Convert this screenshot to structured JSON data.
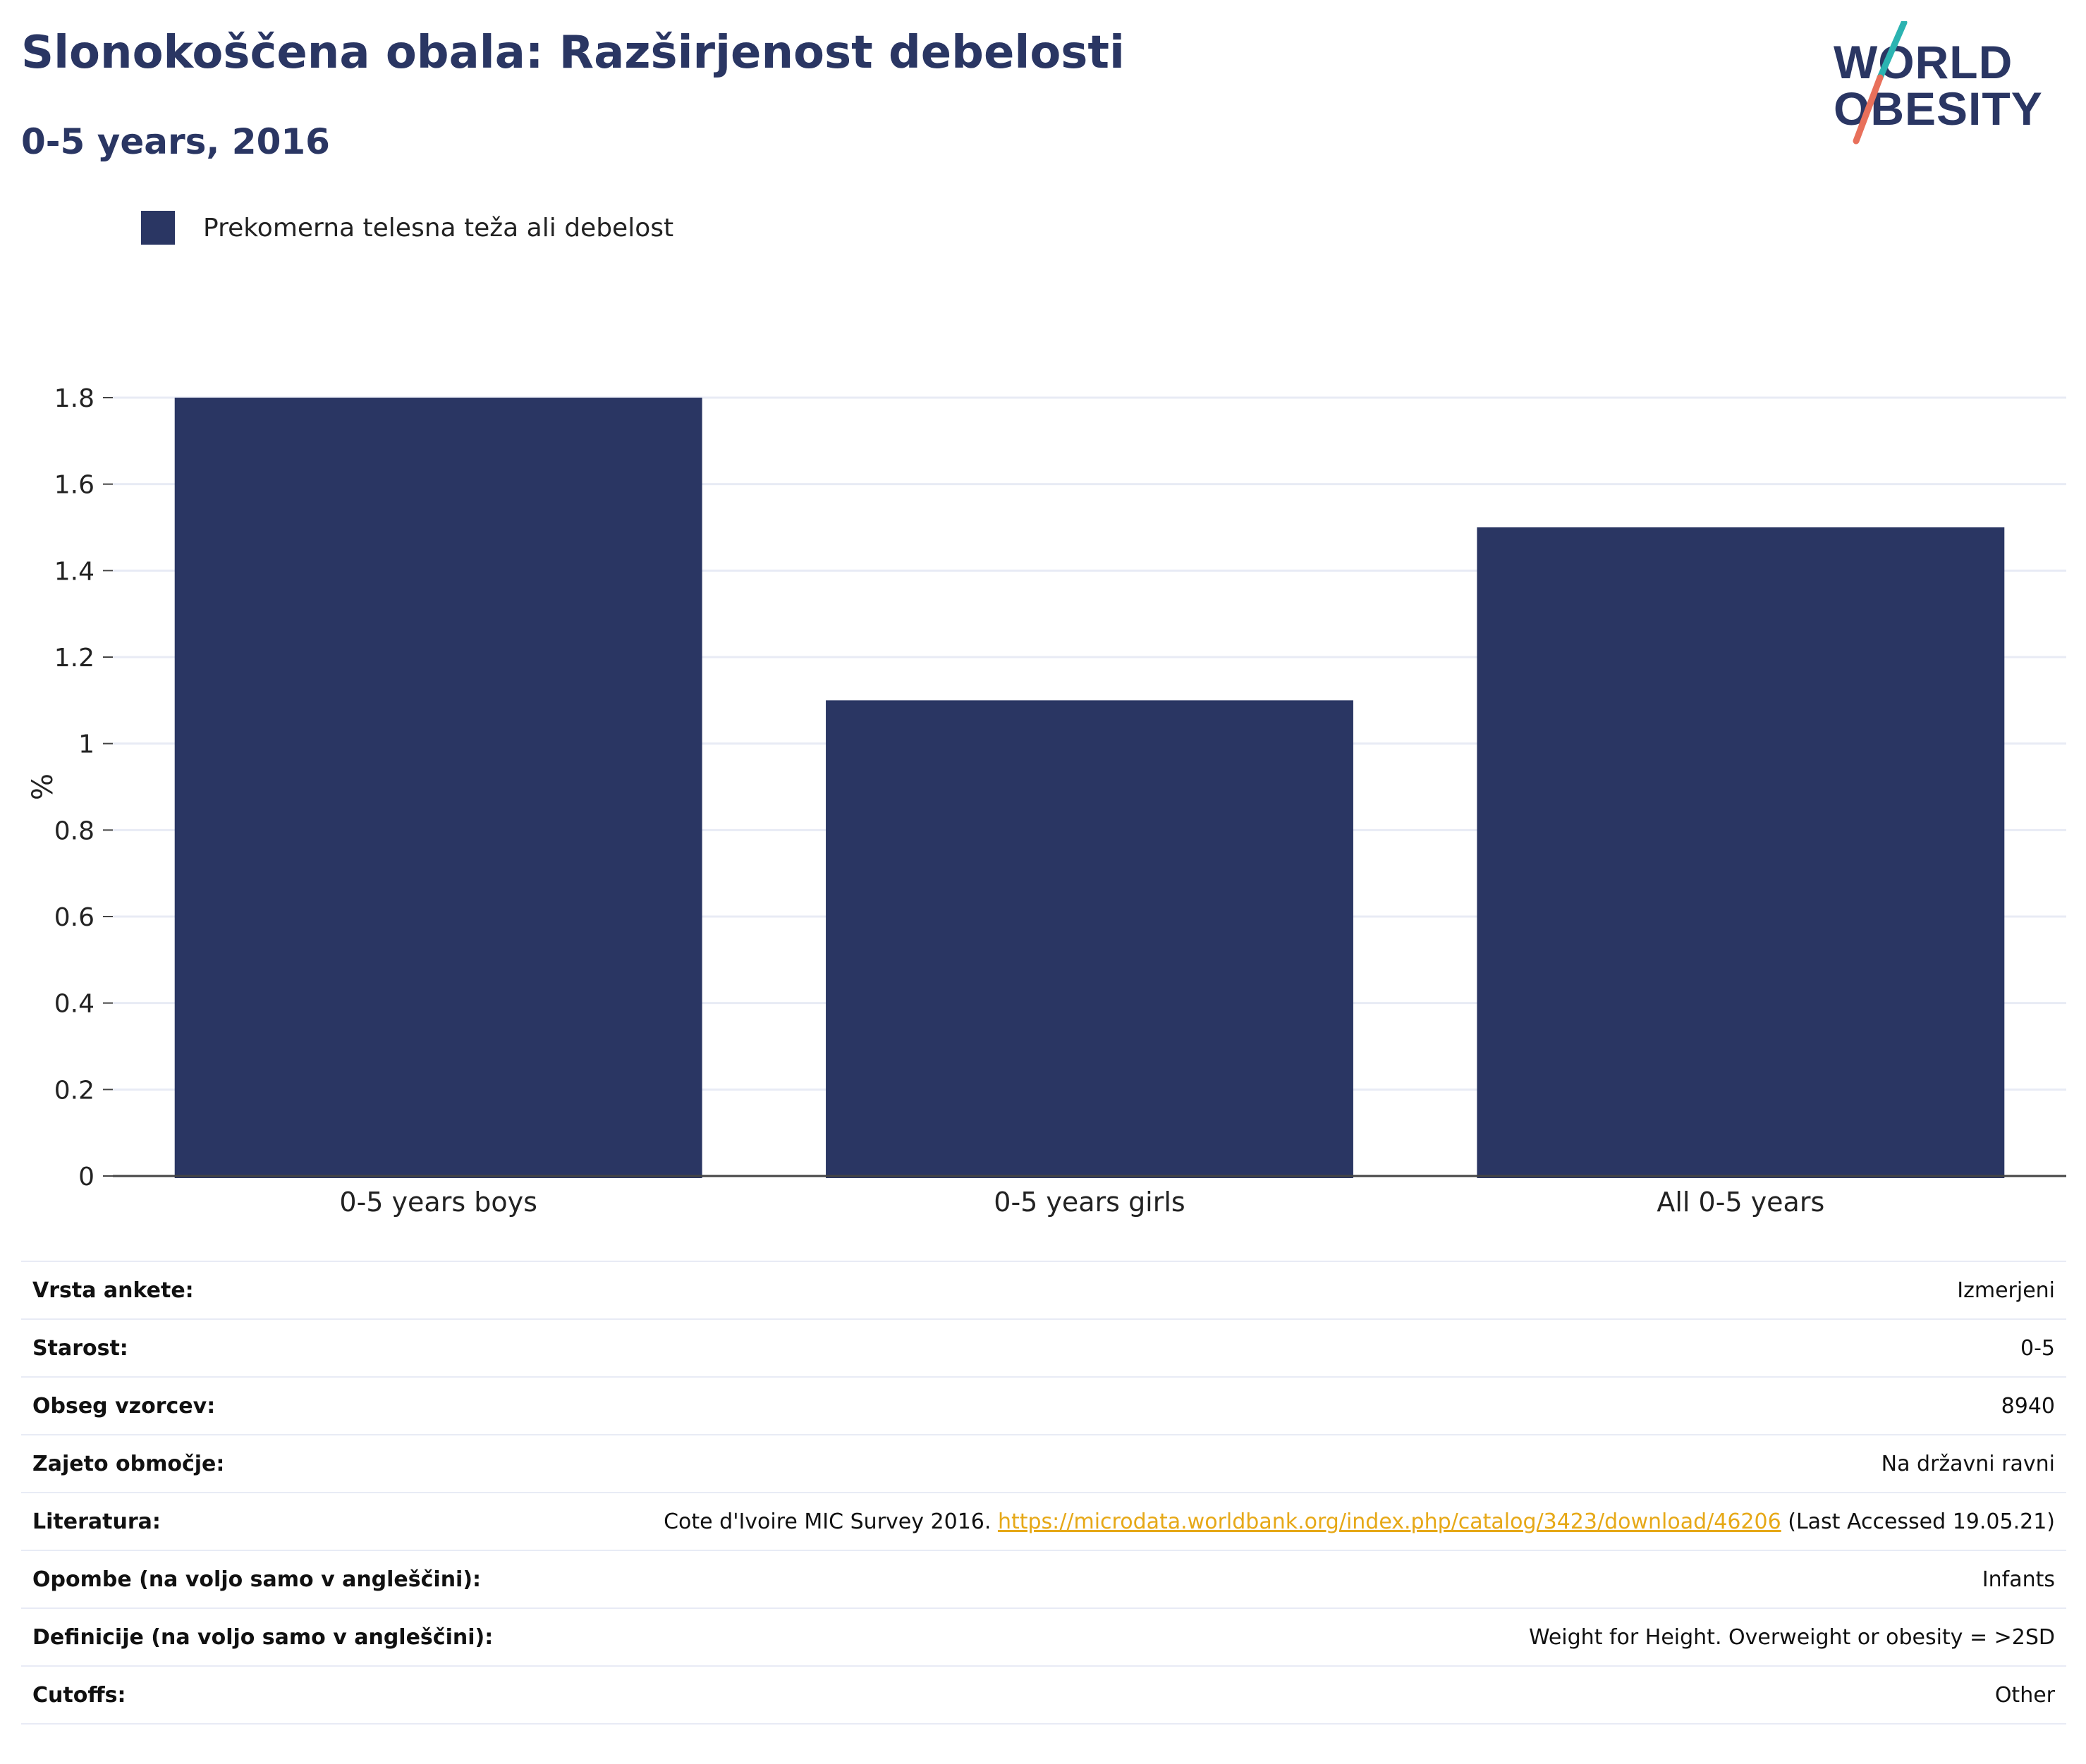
{
  "header": {
    "title": "Slonokoščena obala: Razširjenost debelosti",
    "subtitle": "0-5 years, 2016"
  },
  "logo": {
    "line1": "WORLD",
    "line2": "OBESITY",
    "accent_teal": "#2bb3b1",
    "accent_coral": "#e8705b"
  },
  "legend": {
    "label": "Prekomerna telesna teža ali debelost",
    "color": "#2a3663"
  },
  "chart_data": {
    "type": "bar",
    "categories": [
      "0-5 years boys",
      "0-5 years girls",
      "All 0-5 years"
    ],
    "series": [
      {
        "name": "Prekomerna telesna teža ali debelost",
        "values": [
          1.8,
          1.1,
          1.5
        ],
        "color": "#2a3663"
      }
    ],
    "title": "Slonokoščena obala: Razširjenost debelosti",
    "subtitle": "0-5 years, 2016",
    "xlabel": "",
    "ylabel": "%",
    "ylim": [
      0,
      1.8
    ],
    "yticks": [
      0,
      0.2,
      0.4,
      0.6,
      0.8,
      1,
      1.2,
      1.4,
      1.6,
      1.8
    ],
    "ytick_labels": [
      "0",
      "0.2",
      "0.4",
      "0.6",
      "0.8",
      "1",
      "1.2",
      "1.4",
      "1.6",
      "1.8"
    ],
    "grid": true,
    "legend_position": "top-left"
  },
  "info": {
    "rows": [
      {
        "key": "Vrsta ankete:",
        "value": "Izmerjeni"
      },
      {
        "key": "Starost:",
        "value": "0-5"
      },
      {
        "key": "Obseg vzorcev:",
        "value": "8940"
      },
      {
        "key": "Zajeto območje:",
        "value": "Na državni ravni"
      },
      {
        "key": "Literatura:",
        "value_prefix": "Cote d'Ivoire MIC Survey 2016.",
        "link": "https://microdata.worldbank.org/index.php/catalog/3423/download/46206",
        "value_suffix": "(Last Accessed 19.05.21)"
      },
      {
        "key": "Opombe (na voljo samo v angleščini):",
        "value": "Infants"
      },
      {
        "key": "Definicije (na voljo samo v angleščini):",
        "value": "Weight for Height. Overweight or obesity = >2SD"
      },
      {
        "key": "Cutoffs:",
        "value": "Other"
      }
    ]
  }
}
